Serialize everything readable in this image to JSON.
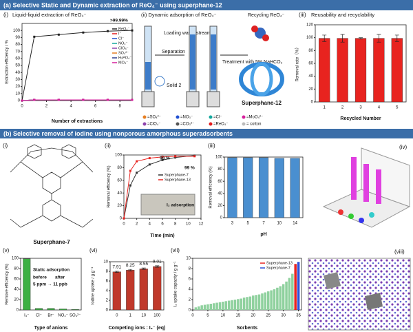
{
  "header_a": "(a) Selective Static and Dynamic extraction of ReO₄⁻ using superphane-12",
  "header_b": "(b) Selective removal of iodine using nonporous amorphous superadsorbents",
  "panel_a_ii": {
    "title": "(ii) Dynamic adsorption of ReO₄⁻",
    "loading": "Loading waste streams",
    "separation": "Separation",
    "treatment": "Treatment with 5% NaHCO₃",
    "recycling": "Recycling ReO₄⁻",
    "solid": "Solid 2",
    "cage": "Superphane-12",
    "legend": [
      "=SO₄²⁻",
      "=NO₃⁻",
      "=Cl⁻",
      "=MoO₄²⁻",
      "=ClO₄⁻",
      "=CO₃²⁻",
      "=ReO₄⁻",
      "= cotton"
    ]
  },
  "panel_b_i": {
    "label": "(i)",
    "name": "Superphane-7"
  },
  "panel_b_iv": {
    "label": "(iv)"
  },
  "panel_b_viii": {
    "label": "(viii)"
  },
  "chart_data": [
    {
      "type": "line",
      "label": "(i)",
      "title": "Liquid-liquid extraction of ReO₄⁻",
      "xlabel": "Number of extractions",
      "ylabel": "Extraction efficiency / %",
      "x": [
        0,
        1,
        3,
        5,
        7,
        9
      ],
      "xlim": [
        0,
        9
      ],
      "xticks": [
        0,
        2,
        4,
        6,
        8
      ],
      "ylim": [
        0,
        110
      ],
      "yticks": [
        0,
        10,
        20,
        30,
        40,
        50,
        60,
        70,
        80,
        90,
        100
      ],
      "annotations": [
        ">99.99%"
      ],
      "series": [
        {
          "name": "ReO₄⁻",
          "color": "#222222",
          "values": [
            0,
            91,
            94,
            97,
            99,
            100
          ]
        },
        {
          "name": "I⁻",
          "color": "#e31a1c",
          "values": [
            0,
            1,
            1,
            1,
            1,
            1
          ]
        },
        {
          "name": "Cl⁻",
          "color": "#1f4fd1",
          "values": [
            0,
            1,
            1,
            1,
            1,
            1
          ]
        },
        {
          "name": "NO₃⁻",
          "color": "#13a89e",
          "values": [
            0,
            1,
            1,
            1,
            1,
            1
          ]
        },
        {
          "name": "ClO₄⁻",
          "color": "#8e44ad",
          "values": [
            0,
            1,
            1,
            1,
            1,
            1
          ]
        },
        {
          "name": "SO₄²⁻",
          "color": "#e67e22",
          "values": [
            0,
            1,
            1,
            1,
            1,
            1
          ]
        },
        {
          "name": "H₂PO₄⁻",
          "color": "#2c3e90",
          "values": [
            0,
            1,
            1,
            1,
            1,
            1
          ]
        },
        {
          "name": "MO₄⁻",
          "color": "#d61f9c",
          "values": [
            0,
            1,
            1,
            1,
            1,
            1
          ]
        }
      ]
    },
    {
      "type": "bar",
      "label": "(iii)",
      "title": "Reusability and recyclability",
      "xlabel": "Recycled Number",
      "ylabel": "Removal rate（%）",
      "categories": [
        "1",
        "2",
        "3",
        "4",
        "5"
      ],
      "values": [
        99,
        99,
        99,
        99,
        99
      ],
      "errors": [
        5,
        6,
        1,
        6,
        5
      ],
      "color": "#e8231f",
      "ylim": [
        0,
        120
      ],
      "yticks": [
        0,
        20,
        40,
        60,
        80,
        100,
        120
      ]
    },
    {
      "type": "line",
      "label": "(ii)",
      "xlabel": "Time (min)",
      "ylabel": "Removal efficiency (%)",
      "x": [
        0,
        1,
        2,
        4,
        6,
        8,
        11
      ],
      "xlim": [
        0,
        12
      ],
      "xticks": [
        0,
        2,
        4,
        6,
        8,
        10,
        12
      ],
      "ylim": [
        0,
        100
      ],
      "yticks": [
        0,
        20,
        40,
        60,
        80,
        100
      ],
      "annotations": [
        "98 %",
        "99 %",
        "I₂ adsorption"
      ],
      "series": [
        {
          "name": "Superphane-7",
          "color": "#333333",
          "values": [
            0,
            52,
            72,
            85,
            92,
            96,
            99
          ]
        },
        {
          "name": "Superphane-13",
          "color": "#e8231f",
          "values": [
            0,
            75,
            90,
            95,
            97,
            98,
            98
          ]
        }
      ]
    },
    {
      "type": "bar",
      "label": "(iii)",
      "xlabel": "pH",
      "ylabel": "Removal efficiency (%)",
      "categories": [
        "3",
        "5",
        "7",
        "10",
        "14"
      ],
      "values": [
        99,
        99,
        99,
        98,
        98
      ],
      "color": "#4a8fd0",
      "ylim": [
        0,
        100
      ],
      "yticks": [
        0,
        20,
        40,
        60,
        80,
        100
      ]
    },
    {
      "type": "bar",
      "label": "(v)",
      "xlabel": "Type of anions",
      "ylabel": "Remove efficiency (%)",
      "categories": [
        "I₃⁻",
        "Cl⁻",
        "Br⁻",
        "NO₃⁻",
        "SO₄²⁻"
      ],
      "values": [
        99,
        3,
        3,
        2,
        1
      ],
      "color": "#3cb043",
      "ylim": [
        0,
        100
      ],
      "yticks": [
        0,
        20,
        40,
        60,
        80,
        100
      ],
      "annotations": [
        "Static adsorption",
        "before",
        "after",
        "5 ppm → 11 ppb"
      ]
    },
    {
      "type": "bar",
      "label": "(vi)",
      "xlabel": "Competing ions : I₃⁻ (eq)",
      "ylabel": "Iodine uptake / g g⁻¹",
      "categories": [
        "0",
        "1",
        "10",
        "100"
      ],
      "values": [
        7.91,
        8.25,
        8.55,
        9.01
      ],
      "errors": [
        0.15,
        0.15,
        0.15,
        0.15
      ],
      "show_values": true,
      "color": "#c0392b",
      "ylim": [
        0,
        10
      ],
      "yticks": [
        0,
        2,
        4,
        6,
        8,
        10
      ]
    },
    {
      "type": "bar",
      "label": "(vii)",
      "xlabel": "Sorbents",
      "ylabel": "I₂ uptake capacity / g g⁻¹",
      "xlim": [
        0,
        36
      ],
      "xticks": [
        0,
        5,
        10,
        15,
        20,
        25,
        30,
        35
      ],
      "ylim": [
        0,
        10
      ],
      "yticks": [
        0,
        2,
        4,
        6,
        8,
        10
      ],
      "series": [
        {
          "color": "#8fd19e",
          "x": [
            1,
            2,
            3,
            4,
            5,
            6,
            7,
            8,
            9,
            10,
            11,
            12,
            13,
            14,
            15,
            16,
            17,
            18,
            19,
            20,
            21,
            22,
            23,
            24,
            25,
            26,
            27,
            28,
            29,
            30,
            31,
            32,
            33
          ],
          "values": [
            0.5,
            0.7,
            0.9,
            1.0,
            1.1,
            1.2,
            1.3,
            1.4,
            1.5,
            1.6,
            1.7,
            1.8,
            1.9,
            2.0,
            2.1,
            2.2,
            2.4,
            2.5,
            2.6,
            2.8,
            2.9,
            3.0,
            3.2,
            3.4,
            3.6,
            3.8,
            4.0,
            4.3,
            4.6,
            5.0,
            5.5,
            6.2,
            7.0
          ]
        },
        {
          "name": "Superphane-13",
          "color": "#e8231f",
          "x": [
            34
          ],
          "values": [
            8.9
          ]
        },
        {
          "name": "Superphane-7",
          "color": "#2f4fd8",
          "x": [
            35
          ],
          "values": [
            9.3
          ]
        }
      ]
    }
  ]
}
